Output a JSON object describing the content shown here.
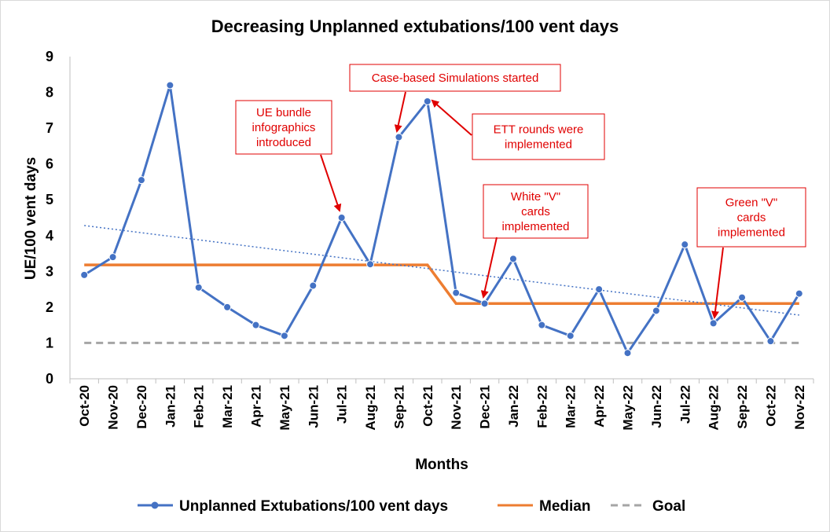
{
  "chart_data": {
    "type": "line",
    "title": "Decreasing Unplanned extubations/100 vent days",
    "xlabel": "Months",
    "ylabel": "UE/100 vent days",
    "ylim": [
      0,
      9
    ],
    "yticks": [
      "0",
      "1",
      "2",
      "3",
      "4",
      "5",
      "6",
      "7",
      "8",
      "9"
    ],
    "categories": [
      "Oct-20",
      "Nov-20",
      "Dec-20",
      "Jan-21",
      "Feb-21",
      "Mar-21",
      "Apr-21",
      "May-21",
      "Jun-21",
      "Jul-21",
      "Aug-21",
      "Sep-21",
      "Oct-21",
      "Nov-21",
      "Dec-21",
      "Jan-22",
      "Feb-22",
      "Mar-22",
      "Apr-22",
      "May-22",
      "Jun-22",
      "Jul-22",
      "Aug-22",
      "Sep-22",
      "Oct-22",
      "Nov-22"
    ],
    "series": [
      {
        "name": "Unplanned Extubations/100 vent days",
        "color": "#4472C4",
        "values": [
          2.9,
          3.4,
          5.55,
          8.2,
          2.55,
          2.0,
          1.5,
          1.2,
          2.6,
          4.5,
          3.2,
          6.75,
          7.75,
          2.4,
          2.1,
          3.35,
          1.5,
          1.2,
          2.5,
          0.72,
          1.9,
          3.75,
          1.55,
          2.27,
          1.05,
          2.38
        ]
      },
      {
        "name": "Median",
        "color": "#ED7D31",
        "values": [
          3.18,
          3.18,
          3.18,
          3.18,
          3.18,
          3.18,
          3.18,
          3.18,
          3.18,
          3.18,
          3.18,
          3.18,
          3.18,
          2.1,
          2.1,
          2.1,
          2.1,
          2.1,
          2.1,
          2.1,
          2.1,
          2.1,
          2.1,
          2.1,
          2.1,
          2.1
        ]
      },
      {
        "name": "Goal",
        "color": "#A5A5A5",
        "values": [
          1,
          1,
          1,
          1,
          1,
          1,
          1,
          1,
          1,
          1,
          1,
          1,
          1,
          1,
          1,
          1,
          1,
          1,
          1,
          1,
          1,
          1,
          1,
          1,
          1,
          1
        ]
      }
    ],
    "trendline": {
      "color": "#4472C4",
      "start": 4.28,
      "end": 1.78
    },
    "legend_position": "bottom",
    "grid": false,
    "annotations": [
      {
        "lines": [
          "UE bundle",
          "infographics",
          "introduced"
        ],
        "target_index": 9
      },
      {
        "lines": [
          "Case-based Simulations started"
        ],
        "target_index": 11
      },
      {
        "lines": [
          "ETT rounds were",
          "implemented"
        ],
        "target_index": 12
      },
      {
        "lines": [
          "White \"V\"",
          "cards",
          "implemented"
        ],
        "target_index": 14
      },
      {
        "lines": [
          "Green \"V\"",
          "cards",
          "implemented"
        ],
        "target_index": 22
      }
    ]
  }
}
